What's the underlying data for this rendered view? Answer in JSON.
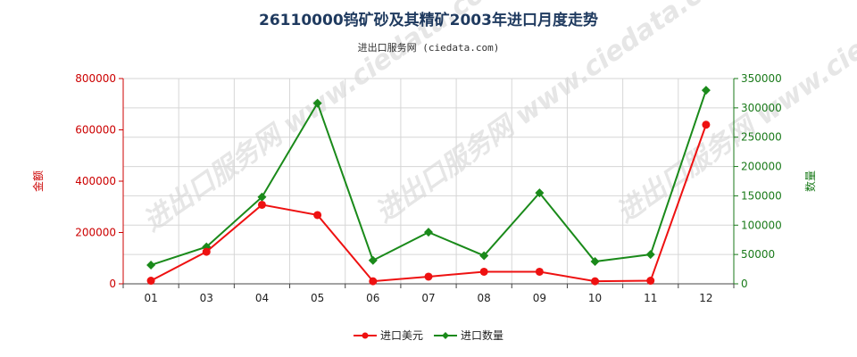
{
  "chart_data": {
    "type": "line",
    "title": "26110000钨矿砂及其精矿2003年进口月度走势",
    "subtitle": "进出口服务网 (ciedata.com)",
    "categories": [
      "01",
      "03",
      "04",
      "05",
      "06",
      "07",
      "08",
      "09",
      "10",
      "11",
      "12"
    ],
    "y_left": {
      "label": "金额",
      "range": [
        0,
        800000
      ],
      "ticks": [
        "0",
        "200000",
        "400000",
        "600000",
        "800000"
      ],
      "color": "#cc0000"
    },
    "y_right": {
      "label": "数量",
      "range": [
        0,
        350000
      ],
      "ticks": [
        "0",
        "50000",
        "100000",
        "150000",
        "200000",
        "250000",
        "300000",
        "350000"
      ],
      "color": "#1a7a1a"
    },
    "series": [
      {
        "name": "进口美元",
        "axis": "left",
        "color": "#ee1111",
        "values": [
          12000,
          125000,
          308000,
          268000,
          10000,
          28000,
          47000,
          47000,
          10000,
          12000,
          620000
        ]
      },
      {
        "name": "进口数量",
        "axis": "right",
        "color": "#1a8a1a",
        "values": [
          32000,
          63000,
          148000,
          308000,
          40000,
          88000,
          48000,
          155000,
          38000,
          50000,
          330000
        ]
      }
    ],
    "grid": true,
    "legend_position": "bottom-center",
    "watermark": "进出口服务网 www.ciedata.com"
  }
}
